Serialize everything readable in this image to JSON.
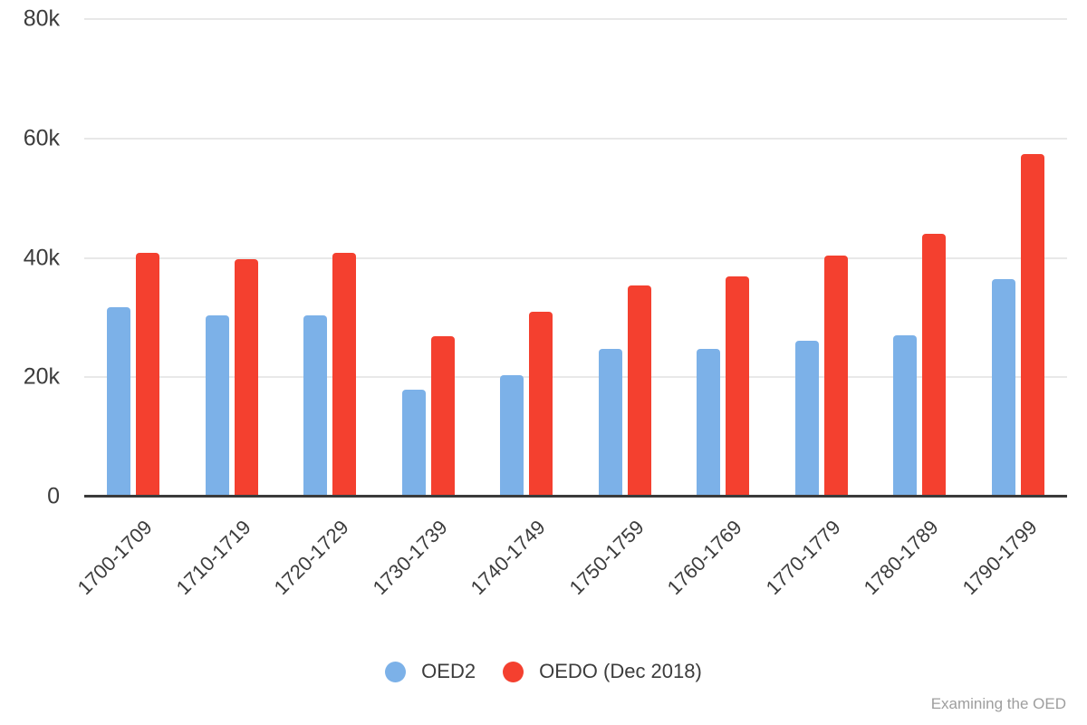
{
  "chart_data": {
    "type": "bar",
    "title": "",
    "categories": [
      "1700-1709",
      "1710-1719",
      "1720-1729",
      "1730-1739",
      "1740-1749",
      "1750-1759",
      "1760-1769",
      "1770-1779",
      "1780-1789",
      "1790-1799"
    ],
    "series": [
      {
        "name": "OED2",
        "color": "#7CB1E8",
        "values": [
          31800,
          30400,
          30400,
          17900,
          20300,
          24800,
          24800,
          26100,
          27000,
          36400
        ]
      },
      {
        "name": "OEDO (Dec 2018)",
        "color": "#F4402F",
        "values": [
          40900,
          39700,
          40900,
          26900,
          30900,
          35400,
          36900,
          40400,
          44000,
          57400
        ]
      }
    ],
    "xlabel": "",
    "ylabel": "",
    "ylim": [
      0,
      80000
    ],
    "yticks": [
      {
        "value": 0,
        "label": "0"
      },
      {
        "value": 20000,
        "label": "20k"
      },
      {
        "value": 40000,
        "label": "40k"
      },
      {
        "value": 60000,
        "label": "60k"
      },
      {
        "value": 80000,
        "label": "80k"
      }
    ],
    "grid": true,
    "legend_position": "bottom"
  },
  "watermark": {
    "text": "Examining the OED"
  },
  "colors": {
    "background": "#ffffff",
    "grid": "#e8e8e8",
    "axis": "#3a3a3a",
    "text": "#3c3c3c",
    "watermark": "#9e9e9e"
  }
}
